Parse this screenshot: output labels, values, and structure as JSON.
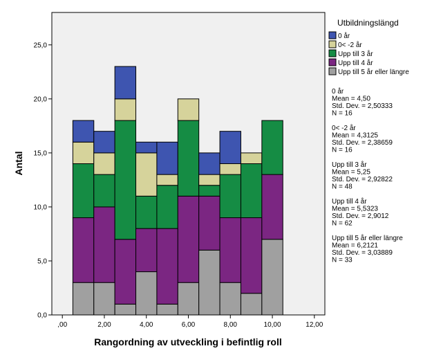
{
  "chart_data": {
    "type": "bar",
    "stacked": true,
    "xlabel": "Rangordning av utveckling i befintlig roll",
    "ylabel": "Antal",
    "x_ticks": [
      0,
      2,
      4,
      6,
      8,
      10,
      12
    ],
    "x_tick_labels": [
      ",00",
      "2,00",
      "4,00",
      "6,00",
      "8,00",
      "10,00",
      "12,00"
    ],
    "xlim": [
      -0.5,
      12.5
    ],
    "y_ticks": [
      0,
      5,
      10,
      15,
      20,
      25
    ],
    "y_tick_labels": [
      "0,0",
      "5,0",
      "10,0",
      "15,0",
      "20,0",
      "25,0"
    ],
    "ylim": [
      0,
      28
    ],
    "bin_width": 1,
    "bin_centers": [
      1,
      2,
      3,
      4,
      5,
      6,
      7,
      8,
      9,
      10
    ],
    "background": "#f0f0f0",
    "legend": {
      "title": "Utbildningslängd",
      "placement": "right"
    },
    "series": [
      {
        "name": "Upp till 5 år eller längre",
        "color": "#a0a0a0",
        "values": [
          3,
          3,
          1,
          4,
          1,
          3,
          6,
          3,
          2,
          7
        ]
      },
      {
        "name": "Upp till 4 år",
        "color": "#7b2682",
        "values": [
          6,
          7,
          6,
          4,
          7,
          8,
          5,
          6,
          7,
          6
        ]
      },
      {
        "name": "Upp till 3 år",
        "color": "#158c44",
        "values": [
          5,
          3,
          11,
          3,
          4,
          7,
          1,
          4,
          5,
          5
        ]
      },
      {
        "name": "0< -2 år",
        "color": "#d6d39b",
        "values": [
          2,
          2,
          2,
          4,
          1,
          2,
          1,
          1,
          1,
          0
        ]
      },
      {
        "name": "0 år",
        "color": "#3e55b0",
        "values": [
          2,
          2,
          3,
          1,
          3,
          0,
          2,
          3,
          0,
          0
        ]
      }
    ],
    "legend_order": [
      "0 år",
      "0< -2 år",
      "Upp till 3 år",
      "Upp till 4 år",
      "Upp till 5 år eller längre"
    ],
    "statistics": [
      {
        "name": "0 år",
        "mean": "Mean = 4,50",
        "sd": "Std. Dev. = 2,50333",
        "n": "N = 16"
      },
      {
        "name": "0< -2 år",
        "mean": "Mean = 4,3125",
        "sd": "Std. Dev. = 2,38659",
        "n": "N = 16"
      },
      {
        "name": "Upp till 3 år",
        "mean": "Mean = 5,25",
        "sd": "Std. Dev. = 2,92822",
        "n": "N = 48"
      },
      {
        "name": "Upp till 4 år",
        "mean": "Mean = 5,5323",
        "sd": "Std. Dev. = 2,9012",
        "n": "N = 62"
      },
      {
        "name": "Upp till 5 år eller längre",
        "mean": "Mean = 6,2121",
        "sd": "Std. Dev. = 3,03889",
        "n": "N = 33"
      }
    ]
  }
}
